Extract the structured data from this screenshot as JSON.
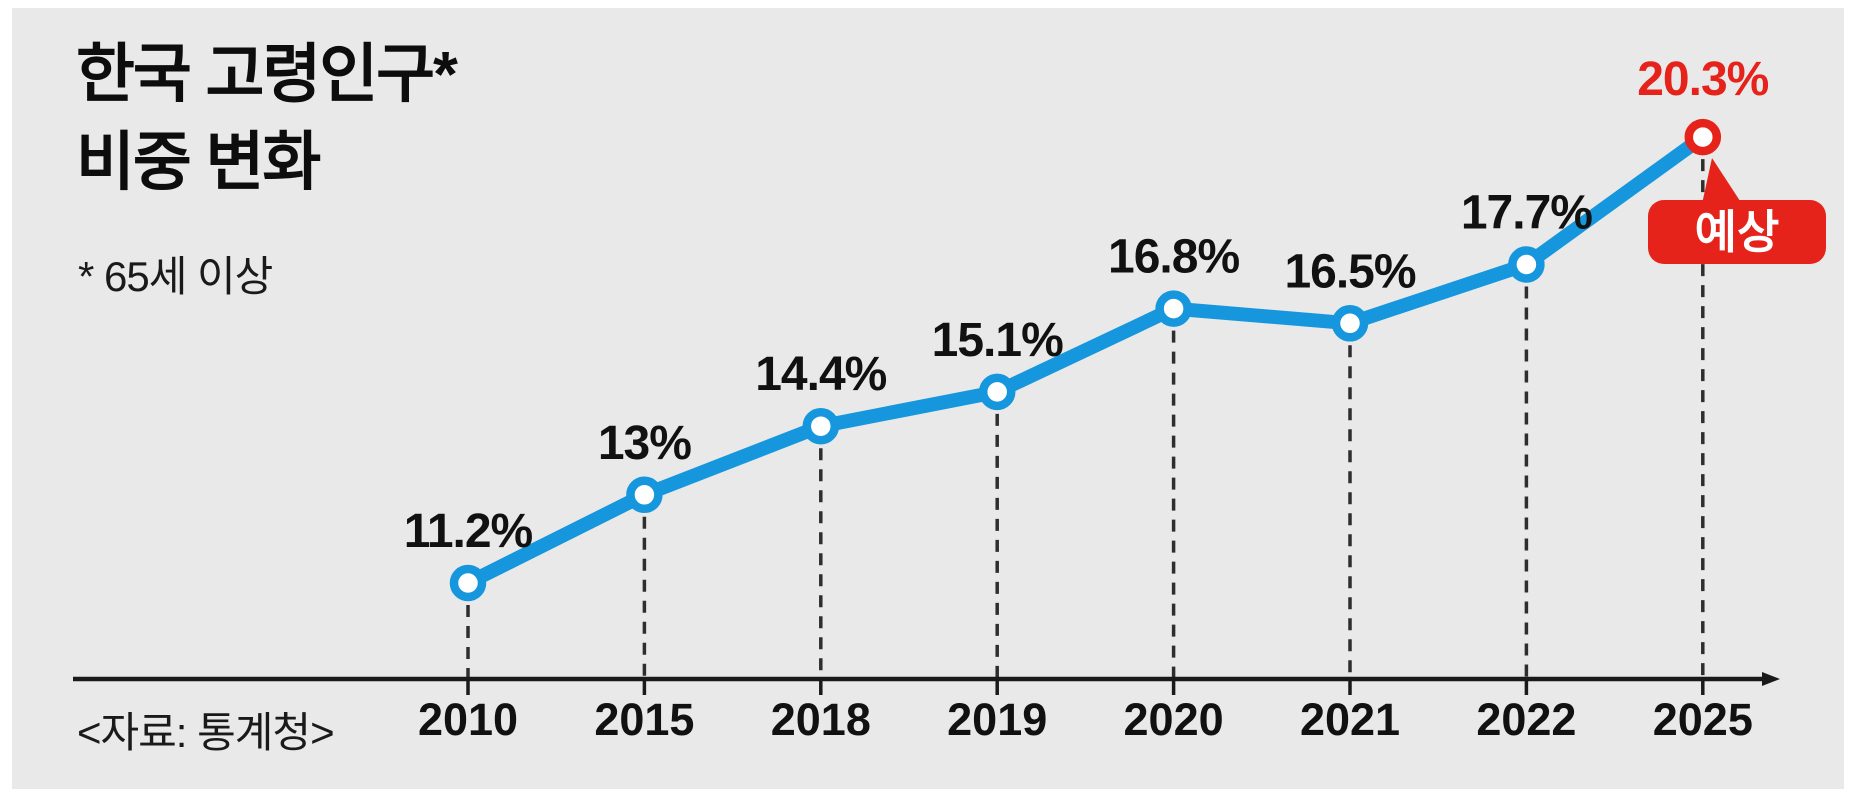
{
  "header": {
    "title_line1": "한국 고령인구*",
    "title_line2": "비중 변화",
    "footnote": "* 65세 이상"
  },
  "footer": {
    "source": "<자료: 통계청>"
  },
  "chart_data": {
    "type": "line",
    "title": "한국 고령인구* 비중 변화",
    "footnote": "* 65세 이상",
    "source": "<자료: 통계청>",
    "categories": [
      "2010",
      "2015",
      "2018",
      "2019",
      "2020",
      "2021",
      "2022",
      "2025"
    ],
    "series": [
      {
        "name": "한국 고령인구 비중",
        "values": [
          11.2,
          13,
          14.4,
          15.1,
          16.8,
          16.5,
          17.7,
          20.3
        ],
        "labels": [
          "11.2%",
          "13%",
          "14.4%",
          "15.1%",
          "16.8%",
          "16.5%",
          "17.7%",
          "20.3%"
        ]
      }
    ],
    "forecast": {
      "index": 7,
      "category": "2025",
      "value": 20.3,
      "label": "예상"
    },
    "xlabel": "",
    "ylabel": "",
    "ylim": [
      10.5,
      21
    ],
    "grid": false,
    "legend_position": "none",
    "colors": {
      "line": "#1697dd",
      "marker_fill": "#ffffff",
      "forecast": "#e5231b",
      "label_text": "#111111",
      "axis": "#1a1a1a",
      "guide": "#2e2e2e",
      "background": "#e9e9e9",
      "badge_text": "#ffffff"
    }
  }
}
